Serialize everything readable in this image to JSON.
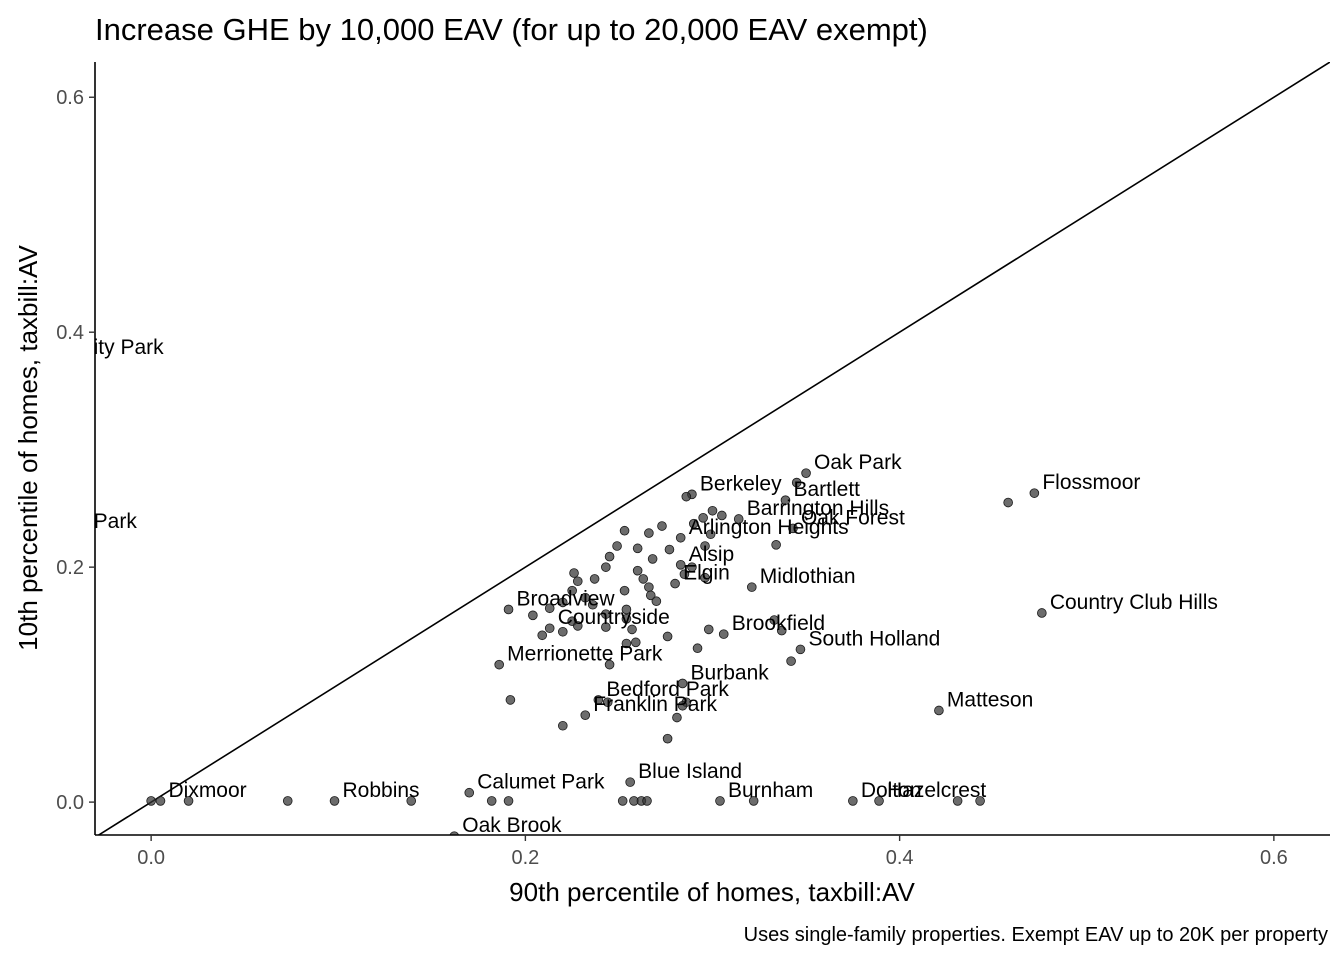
{
  "chart_data": {
    "type": "scatter",
    "title": "Increase GHE by 10,000 EAV (for up to 20,000 EAV exempt)",
    "xlabel": "90th percentile of homes, taxbill:AV",
    "ylabel": "10th percentile of homes, taxbill:AV",
    "caption": "Uses single-family properties. Exempt EAV up to 20K per property",
    "xlim": [
      -0.03,
      0.63
    ],
    "ylim": [
      -0.028,
      0.63
    ],
    "x_ticks": [
      "0.0",
      "0.2",
      "0.4",
      "0.6"
    ],
    "y_ticks": [
      "0.0",
      "0.2",
      "0.4",
      "0.6"
    ],
    "grid": false,
    "reference_line": "y = x",
    "points": [
      {
        "x": 0.35,
        "y": 0.28,
        "label": "Oak Park"
      },
      {
        "x": 0.345,
        "y": 0.272,
        "label": ""
      },
      {
        "x": 0.339,
        "y": 0.257,
        "label": "Bartlett"
      },
      {
        "x": 0.289,
        "y": 0.262,
        "label": "Berkeley"
      },
      {
        "x": 0.286,
        "y": 0.26,
        "label": ""
      },
      {
        "x": 0.472,
        "y": 0.263,
        "label": "Flossmoor"
      },
      {
        "x": 0.458,
        "y": 0.255,
        "label": ""
      },
      {
        "x": 0.343,
        "y": 0.233,
        "label": "Oak Forest"
      },
      {
        "x": 0.334,
        "y": 0.219,
        "label": ""
      },
      {
        "x": 0.314,
        "y": 0.241,
        "label": "Barrington Hills"
      },
      {
        "x": 0.305,
        "y": 0.244,
        "label": ""
      },
      {
        "x": 0.3,
        "y": 0.248,
        "label": ""
      },
      {
        "x": 0.295,
        "y": 0.242,
        "label": ""
      },
      {
        "x": 0.29,
        "y": 0.237,
        "label": ""
      },
      {
        "x": 0.273,
        "y": 0.235,
        "label": ""
      },
      {
        "x": 0.266,
        "y": 0.229,
        "label": ""
      },
      {
        "x": 0.253,
        "y": 0.231,
        "label": ""
      },
      {
        "x": 0.249,
        "y": 0.218,
        "label": ""
      },
      {
        "x": 0.283,
        "y": 0.225,
        "label": "Arlington Heights"
      },
      {
        "x": 0.296,
        "y": 0.218,
        "label": ""
      },
      {
        "x": 0.299,
        "y": 0.228,
        "label": ""
      },
      {
        "x": 0.277,
        "y": 0.215,
        "label": ""
      },
      {
        "x": 0.26,
        "y": 0.216,
        "label": ""
      },
      {
        "x": 0.245,
        "y": 0.209,
        "label": ""
      },
      {
        "x": 0.268,
        "y": 0.207,
        "label": ""
      },
      {
        "x": 0.283,
        "y": 0.202,
        "label": "Alsip"
      },
      {
        "x": 0.289,
        "y": 0.2,
        "label": ""
      },
      {
        "x": 0.285,
        "y": 0.194,
        "label": ""
      },
      {
        "x": 0.296,
        "y": 0.191,
        "label": ""
      },
      {
        "x": 0.28,
        "y": 0.186,
        "label": "Elgin"
      },
      {
        "x": 0.321,
        "y": 0.183,
        "label": "Midlothian"
      },
      {
        "x": 0.226,
        "y": 0.195,
        "label": ""
      },
      {
        "x": 0.237,
        "y": 0.19,
        "label": ""
      },
      {
        "x": 0.243,
        "y": 0.2,
        "label": ""
      },
      {
        "x": 0.228,
        "y": 0.188,
        "label": ""
      },
      {
        "x": 0.26,
        "y": 0.197,
        "label": ""
      },
      {
        "x": 0.263,
        "y": 0.19,
        "label": ""
      },
      {
        "x": 0.266,
        "y": 0.183,
        "label": ""
      },
      {
        "x": 0.253,
        "y": 0.18,
        "label": ""
      },
      {
        "x": 0.225,
        "y": 0.18,
        "label": ""
      },
      {
        "x": 0.232,
        "y": 0.174,
        "label": ""
      },
      {
        "x": 0.267,
        "y": 0.176,
        "label": ""
      },
      {
        "x": 0.27,
        "y": 0.171,
        "label": ""
      },
      {
        "x": 0.191,
        "y": 0.164,
        "label": "Broadview"
      },
      {
        "x": 0.213,
        "y": 0.165,
        "label": ""
      },
      {
        "x": 0.22,
        "y": 0.17,
        "label": ""
      },
      {
        "x": 0.236,
        "y": 0.168,
        "label": ""
      },
      {
        "x": 0.254,
        "y": 0.164,
        "label": ""
      },
      {
        "x": 0.204,
        "y": 0.159,
        "label": ""
      },
      {
        "x": 0.243,
        "y": 0.16,
        "label": ""
      },
      {
        "x": 0.254,
        "y": 0.156,
        "label": ""
      },
      {
        "x": 0.225,
        "y": 0.154,
        "label": ""
      },
      {
        "x": 0.213,
        "y": 0.148,
        "label": "Countryside"
      },
      {
        "x": 0.228,
        "y": 0.15,
        "label": ""
      },
      {
        "x": 0.243,
        "y": 0.149,
        "label": ""
      },
      {
        "x": 0.257,
        "y": 0.147,
        "label": ""
      },
      {
        "x": 0.209,
        "y": 0.142,
        "label": ""
      },
      {
        "x": 0.22,
        "y": 0.145,
        "label": ""
      },
      {
        "x": 0.276,
        "y": 0.141,
        "label": ""
      },
      {
        "x": 0.254,
        "y": 0.135,
        "label": ""
      },
      {
        "x": 0.259,
        "y": 0.136,
        "label": ""
      },
      {
        "x": 0.298,
        "y": 0.147,
        "label": ""
      },
      {
        "x": 0.306,
        "y": 0.143,
        "label": "Brookfield"
      },
      {
        "x": 0.333,
        "y": 0.155,
        "label": ""
      },
      {
        "x": 0.337,
        "y": 0.146,
        "label": ""
      },
      {
        "x": 0.292,
        "y": 0.131,
        "label": ""
      },
      {
        "x": 0.186,
        "y": 0.117,
        "label": "Merrionette Park"
      },
      {
        "x": 0.245,
        "y": 0.117,
        "label": ""
      },
      {
        "x": 0.347,
        "y": 0.13,
        "label": "South Holland"
      },
      {
        "x": 0.342,
        "y": 0.12,
        "label": ""
      },
      {
        "x": 0.284,
        "y": 0.101,
        "label": "Burbank"
      },
      {
        "x": 0.476,
        "y": 0.161,
        "label": "Country Club Hills"
      },
      {
        "x": 0.192,
        "y": 0.087,
        "label": ""
      },
      {
        "x": 0.239,
        "y": 0.087,
        "label": "Bedford Park"
      },
      {
        "x": 0.244,
        "y": 0.085,
        "label": ""
      },
      {
        "x": 0.286,
        "y": 0.085,
        "label": ""
      },
      {
        "x": 0.284,
        "y": 0.082,
        "label": ""
      },
      {
        "x": 0.232,
        "y": 0.074,
        "label": "Franklin Park"
      },
      {
        "x": 0.281,
        "y": 0.072,
        "label": ""
      },
      {
        "x": 0.22,
        "y": 0.065,
        "label": ""
      },
      {
        "x": 0.276,
        "y": 0.054,
        "label": ""
      },
      {
        "x": 0.421,
        "y": 0.078,
        "label": "Matteson"
      },
      {
        "x": 0.256,
        "y": 0.017,
        "label": "Blue Island"
      },
      {
        "x": 0.0,
        "y": 0.001,
        "label": ""
      },
      {
        "x": 0.005,
        "y": 0.001,
        "label": "Dixmoor"
      },
      {
        "x": 0.02,
        "y": 0.001,
        "label": ""
      },
      {
        "x": 0.073,
        "y": 0.001,
        "label": ""
      },
      {
        "x": 0.098,
        "y": 0.001,
        "label": "Robbins"
      },
      {
        "x": 0.139,
        "y": 0.001,
        "label": ""
      },
      {
        "x": 0.17,
        "y": 0.008,
        "label": "Calumet Park"
      },
      {
        "x": 0.182,
        "y": 0.001,
        "label": ""
      },
      {
        "x": 0.191,
        "y": 0.001,
        "label": ""
      },
      {
        "x": 0.252,
        "y": 0.001,
        "label": ""
      },
      {
        "x": 0.258,
        "y": 0.001,
        "label": ""
      },
      {
        "x": 0.262,
        "y": 0.001,
        "label": ""
      },
      {
        "x": 0.265,
        "y": 0.001,
        "label": ""
      },
      {
        "x": 0.304,
        "y": 0.001,
        "label": "Burnham"
      },
      {
        "x": 0.322,
        "y": 0.001,
        "label": ""
      },
      {
        "x": 0.375,
        "y": 0.001,
        "label": "Dolton"
      },
      {
        "x": 0.389,
        "y": 0.001,
        "label": "Hazelcrest"
      },
      {
        "x": 0.431,
        "y": 0.001,
        "label": ""
      },
      {
        "x": 0.443,
        "y": 0.001,
        "label": ""
      },
      {
        "x": 0.162,
        "y": -0.029,
        "label": "Oak Brook"
      }
    ],
    "edge_labels": [
      {
        "x": -0.035,
        "y": 0.378,
        "label": "ity Park"
      },
      {
        "x": -0.035,
        "y": 0.23,
        "label": "Park"
      }
    ]
  }
}
